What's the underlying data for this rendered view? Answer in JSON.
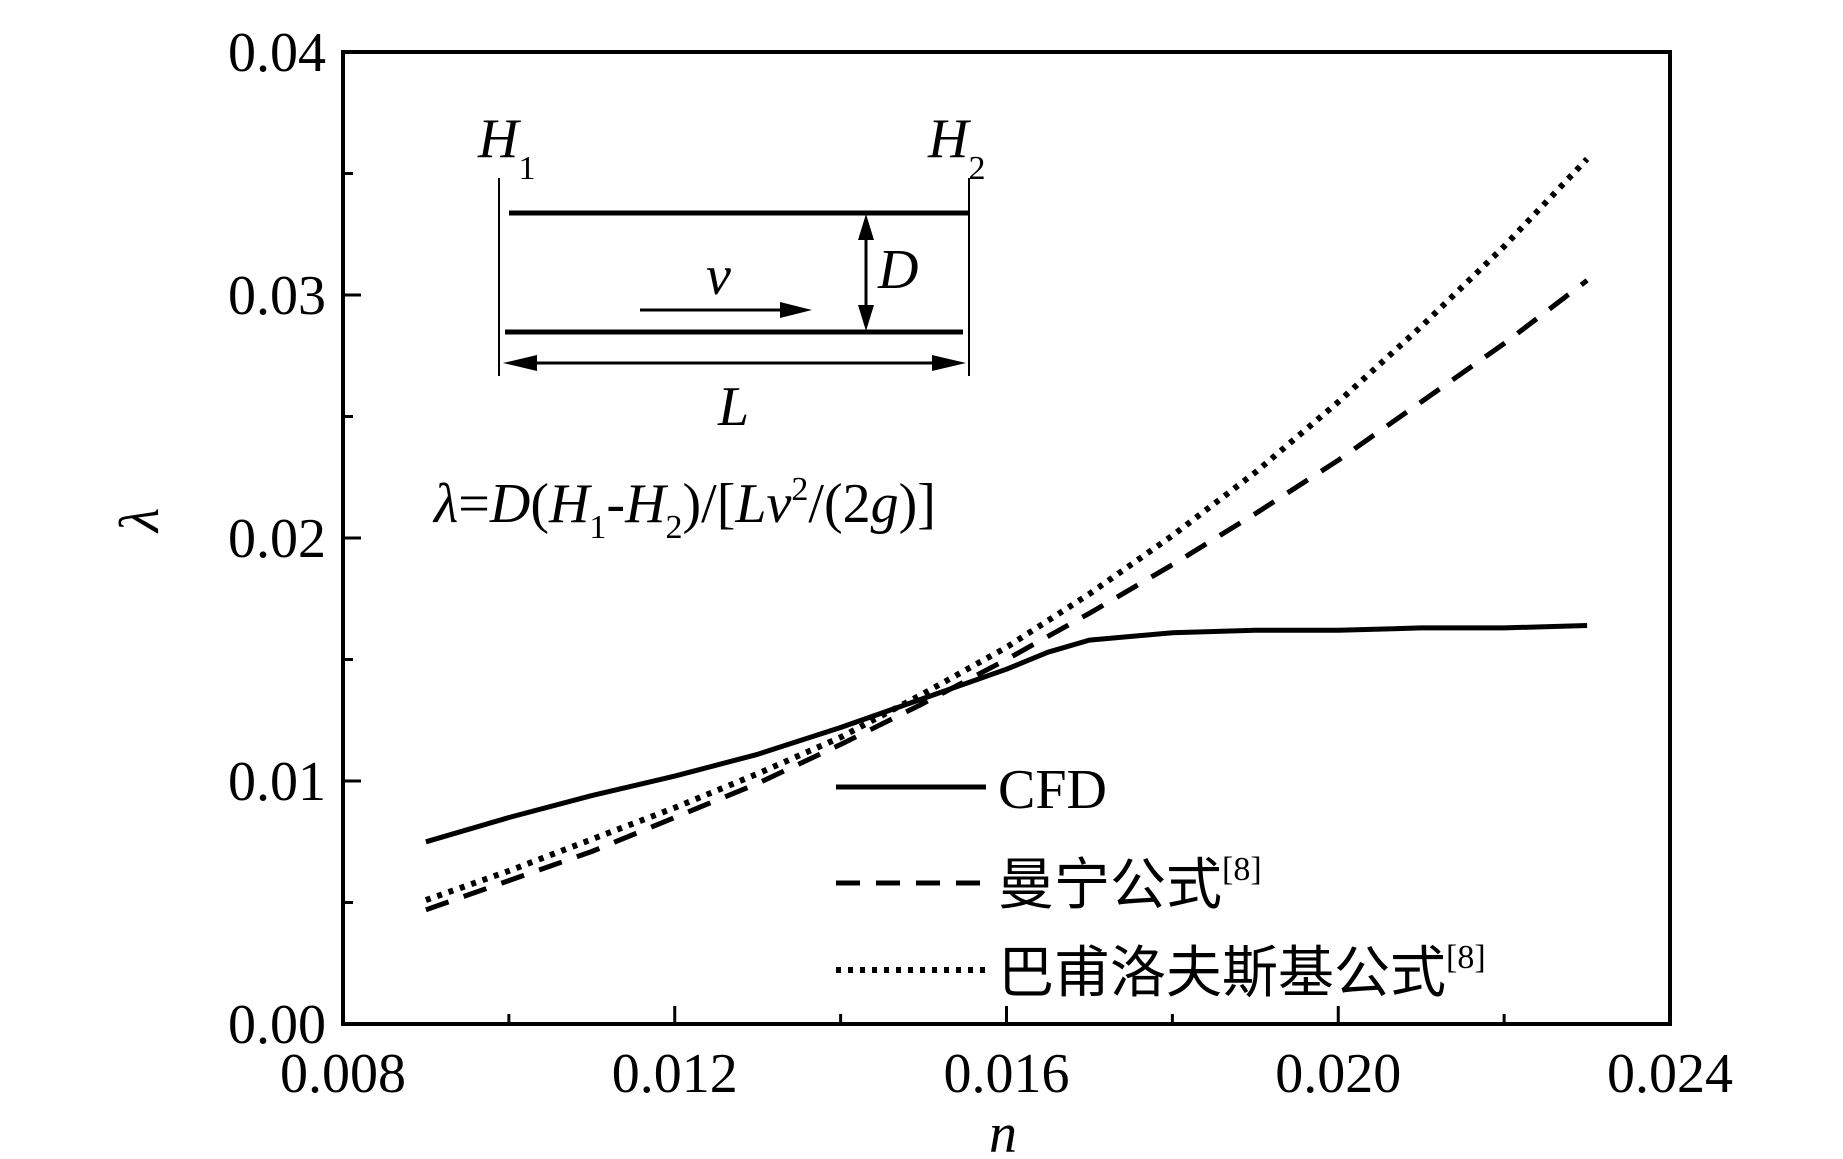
{
  "chart_data": {
    "type": "line",
    "xlabel": "n",
    "ylabel": "λ",
    "xlim": [
      0.008,
      0.024
    ],
    "ylim": [
      0.0,
      0.04
    ],
    "xticks": [
      "0.008",
      "0.012",
      "0.016",
      "0.020",
      "0.024"
    ],
    "yticks": [
      "0.00",
      "0.01",
      "0.02",
      "0.03",
      "0.04"
    ],
    "grid": false,
    "legend_position": "bottom-center",
    "series": [
      {
        "name": "CFD",
        "style": "solid",
        "x": [
          0.009,
          0.01,
          0.011,
          0.012,
          0.013,
          0.014,
          0.015,
          0.016,
          0.0165,
          0.017,
          0.018,
          0.019,
          0.02,
          0.021,
          0.022,
          0.023
        ],
        "y": [
          0.0075,
          0.0085,
          0.0094,
          0.0102,
          0.0111,
          0.0122,
          0.0134,
          0.0146,
          0.0153,
          0.0158,
          0.0161,
          0.0162,
          0.0162,
          0.0163,
          0.0163,
          0.0164
        ]
      },
      {
        "name": "曼宁公式",
        "ref": "[8]",
        "style": "dashed",
        "x": [
          0.009,
          0.01,
          0.011,
          0.012,
          0.013,
          0.014,
          0.015,
          0.016,
          0.017,
          0.018,
          0.019,
          0.02,
          0.021,
          0.022,
          0.023
        ],
        "y": [
          0.0047,
          0.0059,
          0.0071,
          0.0085,
          0.0099,
          0.0115,
          0.0132,
          0.015,
          0.0169,
          0.0189,
          0.021,
          0.0232,
          0.0256,
          0.028,
          0.0306
        ]
      },
      {
        "name": "巴甫洛夫斯基公式",
        "ref": "[8]",
        "style": "dotted",
        "x": [
          0.009,
          0.01,
          0.011,
          0.012,
          0.013,
          0.014,
          0.015,
          0.016,
          0.017,
          0.018,
          0.019,
          0.02,
          0.021,
          0.022,
          0.023
        ],
        "y": [
          0.0051,
          0.0063,
          0.0076,
          0.0089,
          0.0103,
          0.0118,
          0.0136,
          0.0155,
          0.0177,
          0.0201,
          0.0227,
          0.0256,
          0.0287,
          0.032,
          0.0356
        ]
      }
    ]
  },
  "inset": {
    "h1_main": "H",
    "h1_sub": "1",
    "h2_main": "H",
    "h2_sub": "2",
    "d_label": "D",
    "v_label": "v",
    "l_label": "L",
    "formula": {
      "p1": "λ",
      "p2": "=",
      "p3": "D",
      "p4": "(",
      "p5": "H",
      "p6": "1",
      "p7": "-",
      "p8": "H",
      "p9": "2",
      "p10": ")/[",
      "p11": "Lv",
      "p12": "2",
      "p13": "/(2",
      "p14": "g",
      "p15": ")]"
    }
  }
}
